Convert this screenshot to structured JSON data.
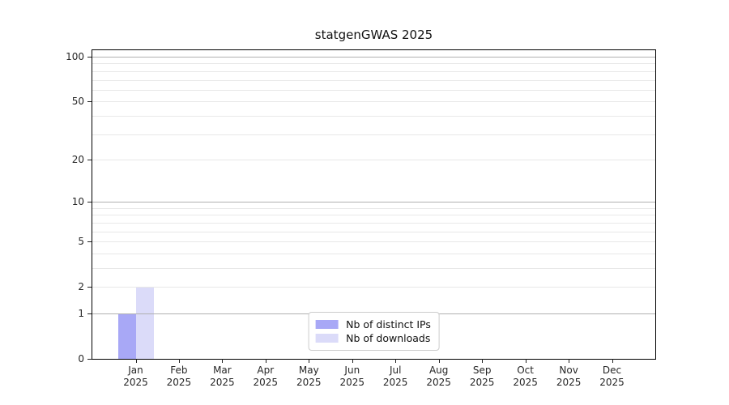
{
  "chart_data": {
    "type": "bar",
    "title": "statgenGWAS 2025",
    "categories": [
      "Jan",
      "Feb",
      "Mar",
      "Apr",
      "May",
      "Jun",
      "Jul",
      "Aug",
      "Sep",
      "Oct",
      "Nov",
      "Dec"
    ],
    "x_year": "2025",
    "series": [
      {
        "name": "Nb of distinct IPs",
        "color": "#a8a8f6",
        "values": [
          1,
          0,
          0,
          0,
          0,
          0,
          0,
          0,
          0,
          0,
          0,
          0
        ]
      },
      {
        "name": "Nb of downloads",
        "color": "#dbdbf9",
        "values": [
          2,
          0,
          0,
          0,
          0,
          0,
          0,
          0,
          0,
          0,
          0,
          0
        ]
      }
    ],
    "y_axis": {
      "scale": "log1p",
      "ylim": [
        0,
        100
      ],
      "tick_values": [
        0,
        1,
        2,
        5,
        10,
        20,
        50,
        100
      ],
      "tick_labels": [
        "0",
        "1",
        "2",
        "5",
        "10",
        "20",
        "50",
        "100"
      ],
      "major_gridlines": [
        1,
        10,
        100
      ],
      "minor_gridlines": [
        2,
        3,
        4,
        5,
        6,
        7,
        8,
        9,
        20,
        30,
        40,
        50,
        60,
        70,
        80,
        90
      ]
    },
    "legend": {
      "position": "lower center",
      "entries": [
        "Nb of distinct IPs",
        "Nb of downloads"
      ]
    },
    "grid": true
  },
  "colors": {
    "background": "#ffffff",
    "plot_border": "#000000",
    "major_grid": "#b0b0b0",
    "minor_grid": "#e8e8e8",
    "text": "#262626",
    "bar_distinct_ips": "#a8a8f6",
    "bar_downloads": "#dbdbf9"
  }
}
